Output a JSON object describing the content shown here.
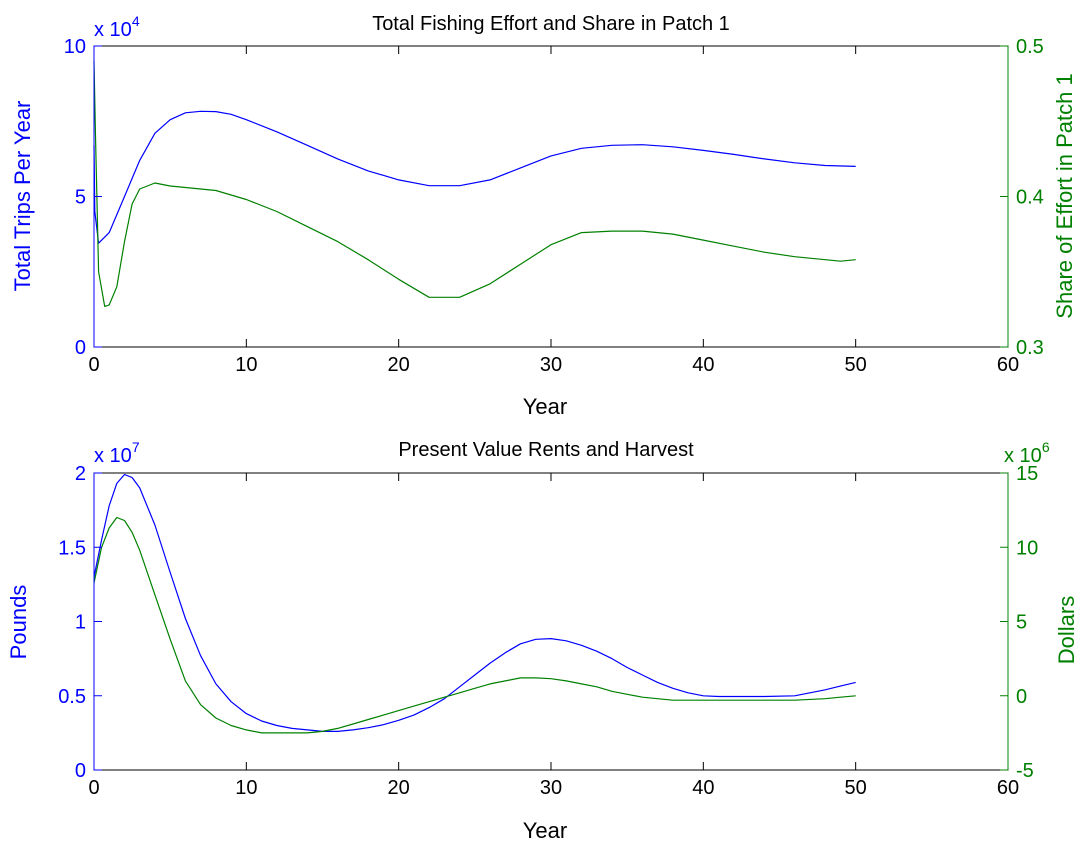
{
  "chart_data": [
    {
      "type": "line",
      "title": "Total Fishing Effort and Share in Patch 1",
      "xlabel": "Year",
      "xlim": [
        0,
        60
      ],
      "xticks": [
        "0",
        "10",
        "20",
        "30",
        "40",
        "50",
        "60"
      ],
      "grid": false,
      "left_axis": {
        "label": "Total Trips Per Year",
        "color": "#0000ff",
        "ylim": [
          0,
          100000
        ],
        "ticks": [
          "0",
          "5",
          "10"
        ],
        "exponent_base": "x 10",
        "exponent_power": "4"
      },
      "right_axis": {
        "label": "Share of Effort in Patch 1",
        "color": "#008000",
        "ylim": [
          0.3,
          0.5
        ],
        "ticks": [
          "0.3",
          "0.4",
          "0.5"
        ],
        "exponent_base": "",
        "exponent_power": ""
      },
      "series": [
        {
          "axis": "left",
          "color": "#0000ff",
          "x": [
            0,
            0.05,
            0.3,
            1,
            2,
            3,
            4,
            5,
            6,
            7,
            8,
            9,
            10,
            12,
            14,
            16,
            18,
            20,
            22,
            24,
            26,
            28,
            30,
            32,
            34,
            36,
            38,
            40,
            42,
            44,
            46,
            48,
            50
          ],
          "y": [
            67000,
            45000,
            34500,
            38000,
            50000,
            62000,
            71000,
            75500,
            77800,
            78300,
            78200,
            77300,
            75500,
            71500,
            67000,
            62500,
            58500,
            55500,
            53600,
            53600,
            55500,
            59500,
            63500,
            66000,
            67000,
            67200,
            66500,
            65300,
            64000,
            62500,
            61200,
            60300,
            60000
          ]
        },
        {
          "axis": "right",
          "color": "#008000",
          "x": [
            0,
            0.1,
            0.3,
            0.7,
            1,
            1.5,
            2,
            2.5,
            3,
            4,
            5,
            6,
            8,
            10,
            12,
            14,
            16,
            18,
            20,
            22,
            24,
            26,
            28,
            30,
            32,
            34,
            36,
            38,
            40,
            42,
            44,
            46,
            48,
            49,
            50
          ],
          "y": [
            0.49,
            0.44,
            0.35,
            0.327,
            0.328,
            0.34,
            0.37,
            0.395,
            0.405,
            0.409,
            0.407,
            0.406,
            0.404,
            0.398,
            0.39,
            0.38,
            0.37,
            0.358,
            0.345,
            0.333,
            0.333,
            0.342,
            0.355,
            0.368,
            0.376,
            0.377,
            0.377,
            0.375,
            0.371,
            0.367,
            0.363,
            0.36,
            0.358,
            0.357,
            0.358
          ]
        }
      ]
    },
    {
      "type": "line",
      "title": "Present Value Rents and Harvest",
      "xlabel": "Year",
      "xlim": [
        0,
        60
      ],
      "xticks": [
        "0",
        "10",
        "20",
        "30",
        "40",
        "50",
        "60"
      ],
      "grid": false,
      "left_axis": {
        "label": "Pounds",
        "color": "#0000ff",
        "ylim": [
          0,
          20000000
        ],
        "ticks": [
          "0",
          "0.5",
          "1",
          "1.5",
          "2"
        ],
        "exponent_base": "x 10",
        "exponent_power": "7"
      },
      "right_axis": {
        "label": "Dollars",
        "color": "#008000",
        "ylim": [
          -5000000,
          15000000
        ],
        "ticks": [
          "-5",
          "0",
          "5",
          "10",
          "15"
        ],
        "exponent_base": "x 10",
        "exponent_power": "6"
      },
      "series": [
        {
          "axis": "left",
          "color": "#0000ff",
          "x": [
            0,
            0.5,
            1,
            1.5,
            2,
            2.5,
            3,
            4,
            5,
            6,
            7,
            8,
            9,
            10,
            11,
            12,
            13,
            14,
            15,
            16,
            17,
            18,
            19,
            20,
            21,
            22,
            23,
            24,
            25,
            26,
            27,
            28,
            29,
            30,
            31,
            32,
            33,
            34,
            35,
            36,
            37,
            38,
            39,
            40,
            41,
            42,
            44,
            46,
            48,
            49,
            50
          ],
          "y": [
            13000000,
            15500000,
            17800000,
            19300000,
            19900000,
            19700000,
            19000000,
            16500000,
            13300000,
            10200000,
            7700000,
            5800000,
            4600000,
            3800000,
            3300000,
            3000000,
            2800000,
            2700000,
            2600000,
            2600000,
            2700000,
            2850000,
            3050000,
            3350000,
            3700000,
            4200000,
            4800000,
            5600000,
            6400000,
            7200000,
            7900000,
            8500000,
            8800000,
            8850000,
            8700000,
            8400000,
            8000000,
            7500000,
            6900000,
            6400000,
            5900000,
            5500000,
            5200000,
            5000000,
            4950000,
            4950000,
            4950000,
            5000000,
            5400000,
            5650000,
            5900000
          ]
        },
        {
          "axis": "right",
          "color": "#008000",
          "x": [
            0,
            0.5,
            1,
            1.5,
            2,
            2.5,
            3,
            4,
            5,
            6,
            7,
            8,
            9,
            10,
            11,
            12,
            13,
            14,
            15,
            16,
            17,
            18,
            19,
            20,
            21,
            22,
            23,
            24,
            25,
            26,
            27,
            28,
            29,
            30,
            31,
            32,
            33,
            34,
            35,
            36,
            37,
            38,
            40,
            42,
            44,
            46,
            48,
            49,
            50
          ],
          "y": [
            7600000,
            10000000,
            11300000,
            12000000,
            11800000,
            11000000,
            9800000,
            6800000,
            3800000,
            1000000,
            -600000,
            -1500000,
            -2000000,
            -2300000,
            -2500000,
            -2500000,
            -2500000,
            -2500000,
            -2400000,
            -2200000,
            -1900000,
            -1600000,
            -1300000,
            -1000000,
            -700000,
            -400000,
            -100000,
            200000,
            500000,
            800000,
            1000000,
            1200000,
            1200000,
            1150000,
            1000000,
            800000,
            600000,
            300000,
            100000,
            -100000,
            -200000,
            -300000,
            -300000,
            -300000,
            -300000,
            -300000,
            -200000,
            -100000,
            0
          ]
        }
      ]
    }
  ]
}
